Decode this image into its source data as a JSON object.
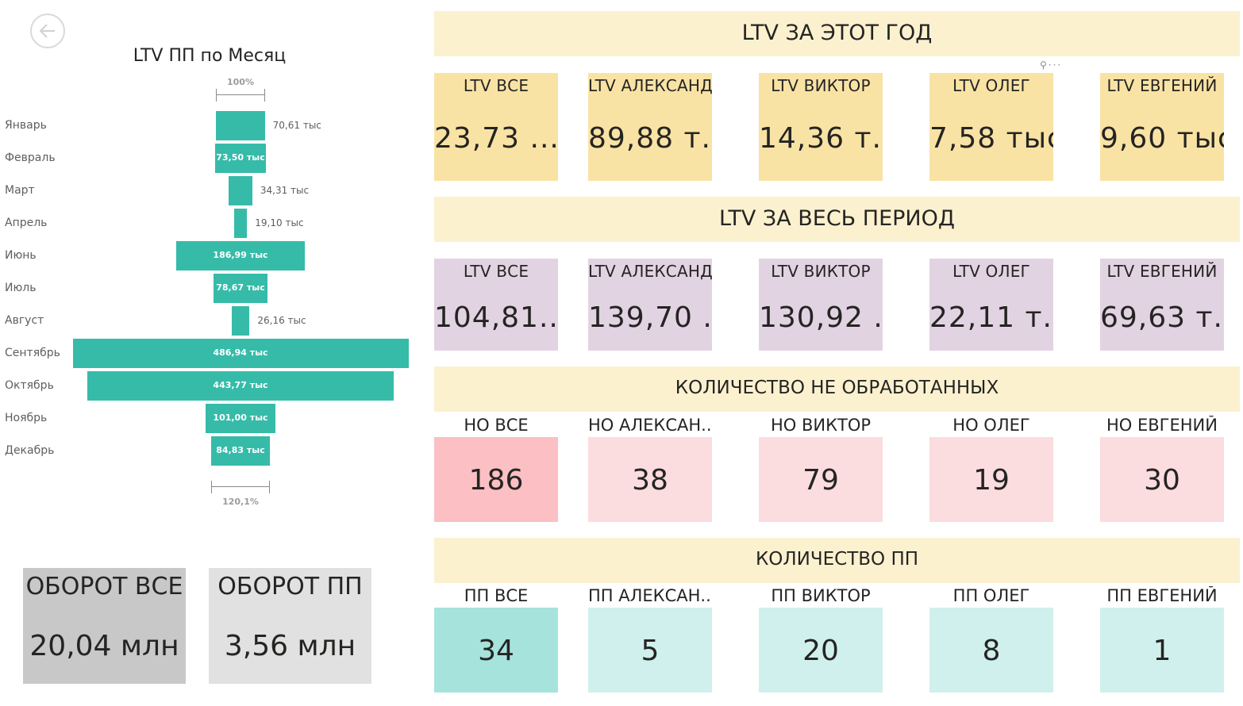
{
  "funnel": {
    "title": "LTV ПП по Месяц",
    "top_pct": "100%",
    "bottom_pct": "120,1%",
    "bar_color": "#36bba9"
  },
  "chart_data": {
    "type": "funnel",
    "title": "LTV ПП по Месяц",
    "categories": [
      "Январь",
      "Февраль",
      "Март",
      "Апрель",
      "Июнь",
      "Июль",
      "Август",
      "Сентябрь",
      "Октябрь",
      "Ноябрь",
      "Декабрь"
    ],
    "values": [
      70.61,
      73.5,
      34.31,
      19.1,
      186.99,
      78.67,
      26.16,
      486.94,
      443.77,
      101.0,
      84.83
    ],
    "value_labels": [
      "70,61 тыс",
      "73,50 тыс",
      "34,31 тыс",
      "19,10 тыс",
      "186,99 тыс",
      "78,67 тыс",
      "26,16 тыс",
      "486,94 тыс",
      "443,77 тыс",
      "101,00 тыс",
      "84,83 тыс"
    ],
    "unit": "тыс",
    "top_pct": "100%",
    "bottom_pct": "120,1%"
  },
  "turnover": [
    {
      "label": "ОБОРОТ ВСЕ",
      "value": "20,04 млн",
      "bg": "#c8c8c8"
    },
    {
      "label": "ОБОРОТ ПП",
      "value": "3,56 млн",
      "bg": "#e1e1e1"
    }
  ],
  "sections": [
    {
      "title": "LTV ЗА ЭТОТ ГОД",
      "cards": [
        {
          "label": "LTV ВСЕ",
          "value": "23,73 ...",
          "bg": "#f9e3a4"
        },
        {
          "label": "LTV АЛЕКСАНДР",
          "value": "89,88 т...",
          "bg": "#f9e3a4"
        },
        {
          "label": "LTV ВИКТОР",
          "value": "14,36 т...",
          "bg": "#f9e3a4"
        },
        {
          "label": "LTV ОЛЕГ",
          "value": "7,58 тыс",
          "bg": "#f9e3a4"
        },
        {
          "label": "LTV ЕВГЕНИЙ",
          "value": "9,60 тыс",
          "bg": "#f9e3a4"
        }
      ]
    },
    {
      "title": "LTV ЗА ВЕСЬ ПЕРИОД",
      "cards": [
        {
          "label": "LTV ВСЕ",
          "value": "104,81...",
          "bg": "#e2d3e2"
        },
        {
          "label": "LTV АЛЕКСАНДР",
          "value": "139,70 ...",
          "bg": "#e2d3e2"
        },
        {
          "label": "LTV ВИКТОР",
          "value": "130,92 ...",
          "bg": "#e2d3e2"
        },
        {
          "label": "LTV ОЛЕГ",
          "value": "22,11 т...",
          "bg": "#e2d3e2"
        },
        {
          "label": "LTV ЕВГЕНИЙ",
          "value": "69,63 т...",
          "bg": "#e2d3e2"
        }
      ]
    },
    {
      "title": "КОЛИЧЕСТВО НЕ ОБРАБОТАННЫХ",
      "cards": [
        {
          "label": "НО ВСЕ",
          "value": "186",
          "bg": "#fbbfc4"
        },
        {
          "label": "НО АЛЕКСАН...",
          "value": "38",
          "bg": "#fbdcdf"
        },
        {
          "label": "НО ВИКТОР",
          "value": "79",
          "bg": "#fbdcdf"
        },
        {
          "label": "НО ОЛЕГ",
          "value": "19",
          "bg": "#fbdcdf"
        },
        {
          "label": "НО ЕВГЕНИЙ",
          "value": "30",
          "bg": "#fbdcdf"
        }
      ]
    },
    {
      "title": "КОЛИЧЕСТВО ПП",
      "cards": [
        {
          "label": "ПП ВСЕ",
          "value": "34",
          "bg": "#a6e3dc"
        },
        {
          "label": "ПП АЛЕКСАН...",
          "value": "5",
          "bg": "#d0f0ed"
        },
        {
          "label": "ПП ВИКТОР",
          "value": "20",
          "bg": "#d0f0ed"
        },
        {
          "label": "ПП ОЛЕГ",
          "value": "8",
          "bg": "#d0f0ed"
        },
        {
          "label": "ПП ЕВГЕНИЙ",
          "value": "1",
          "bg": "#d0f0ed"
        }
      ]
    }
  ],
  "icons": {
    "back": "back-arrow-icon",
    "pin": "pin-icon",
    "more": "more-options-icon"
  }
}
